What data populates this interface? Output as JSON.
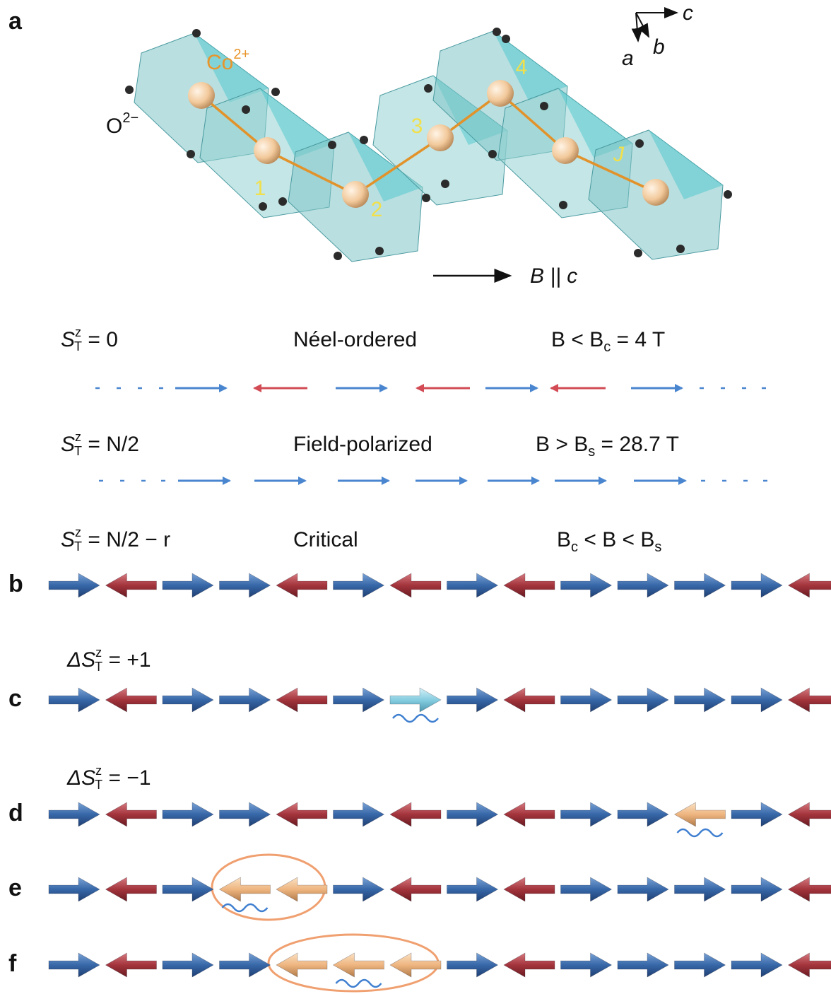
{
  "panel_labels": [
    "a",
    "b",
    "c",
    "d",
    "e",
    "f"
  ],
  "axes": {
    "c": "c",
    "a": "a",
    "b": "b"
  },
  "co_ion": {
    "base": "Co",
    "sup": "2+"
  },
  "o_ion": {
    "base": "O",
    "sup": "2−"
  },
  "sites": [
    "1",
    "2",
    "3",
    "4"
  ],
  "coupling": "J",
  "field": "B || c",
  "states": [
    {
      "s": "S",
      "sup": "z",
      "sub": "T",
      "rest": " = 0",
      "phase": "Néel-ordered",
      "condition": [
        {
          "t": "B < B"
        },
        {
          "t": "c",
          "sub": true
        },
        {
          "t": " = 4 T"
        }
      ]
    },
    {
      "s": "S",
      "sup": "z",
      "sub": "T",
      "rest": " = N/2",
      "phase": "Field-polarized",
      "condition": [
        {
          "t": "B > B"
        },
        {
          "t": "s",
          "sub": true
        },
        {
          "t": " = 28.7 T"
        }
      ]
    },
    {
      "s": "S",
      "sup": "z",
      "sub": "T",
      "rest": " = N/2 − r",
      "phase": "Critical",
      "condition": [
        {
          "t": "B"
        },
        {
          "t": "c",
          "sub": true
        },
        {
          "t": " < B < B"
        },
        {
          "t": "s",
          "sub": true
        }
      ]
    }
  ],
  "excitations": [
    {
      "s": "ΔS",
      "sup": "z",
      "sub": "T",
      "rest": " = +1"
    },
    {
      "s": "ΔS",
      "sup": "z",
      "sub": "T",
      "rest": " = −1"
    }
  ]
}
